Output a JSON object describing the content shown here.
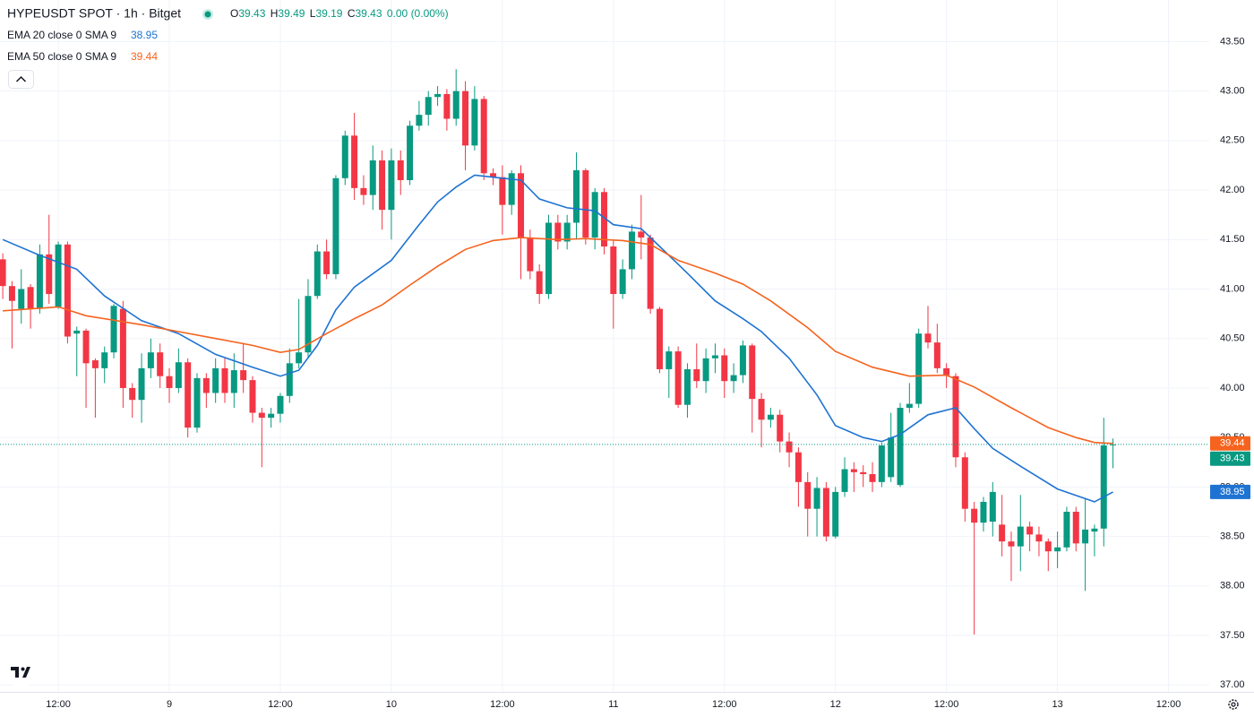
{
  "chart_data": {
    "type": "candlestick",
    "title": "HYPEUSDT SPOT · 1h · Bitget",
    "ohlc_labels": [
      "O",
      "H",
      "L",
      "C"
    ],
    "change": "0.00 (0.00%)",
    "up_color": "#089981",
    "down_color": "#f23645",
    "open": [
      41.3,
      41.03,
      40.8,
      41.02,
      40.8,
      41.35,
      40.82,
      41.45,
      40.55,
      40.58,
      40.28,
      40.2,
      40.36,
      40.8,
      40.0,
      39.88,
      40.2,
      40.36,
      40.12,
      40.0,
      40.26,
      39.6,
      40.1,
      39.95,
      40.2,
      39.95,
      40.18,
      40.08,
      39.75,
      39.7,
      39.74,
      39.92,
      40.25,
      40.36,
      40.93,
      41.38,
      41.15,
      42.12,
      42.55,
      42.02,
      41.95,
      42.3,
      41.8,
      42.3,
      42.1,
      42.65,
      42.76,
      42.94,
      42.97,
      42.72,
      43.0,
      42.45,
      42.92,
      42.17,
      42.13,
      41.85,
      42.17,
      41.52,
      41.18,
      40.95,
      41.67,
      41.48,
      41.67,
      42.2,
      41.52,
      41.98,
      41.43,
      40.95,
      41.2,
      41.58,
      41.52,
      40.8,
      40.19,
      40.37,
      39.83,
      40.19,
      40.07,
      40.3,
      40.33,
      40.07,
      40.13,
      40.43,
      39.89,
      39.68,
      39.73,
      39.46,
      39.35,
      39.05,
      38.78,
      38.99,
      38.5,
      38.95,
      39.18,
      39.15,
      39.13,
      39.05,
      39.1,
      39.02,
      39.8,
      39.84,
      40.55,
      40.46,
      40.2,
      40.12,
      39.3,
      38.78,
      38.64,
      38.65,
      38.62,
      38.45,
      38.4,
      38.6,
      38.52,
      38.45,
      38.35,
      38.39,
      38.75,
      38.43,
      38.55,
      38.58,
      39.43
    ],
    "high": [
      41.36,
      41.08,
      41.2,
      41.05,
      41.45,
      41.75,
      41.48,
      41.48,
      40.62,
      40.6,
      40.3,
      40.42,
      40.85,
      40.88,
      40.05,
      40.35,
      40.5,
      40.45,
      40.2,
      40.4,
      40.3,
      40.15,
      40.15,
      40.3,
      40.3,
      40.35,
      40.45,
      40.12,
      39.8,
      39.8,
      39.95,
      40.4,
      40.9,
      41.1,
      41.45,
      41.5,
      42.15,
      42.6,
      42.78,
      42.15,
      42.45,
      42.4,
      42.42,
      42.4,
      42.7,
      42.9,
      43.0,
      43.05,
      43.02,
      43.22,
      43.1,
      43.05,
      42.95,
      42.22,
      42.25,
      42.2,
      42.25,
      41.6,
      41.25,
      41.75,
      41.75,
      41.75,
      42.38,
      42.22,
      42.02,
      42.02,
      41.5,
      41.3,
      41.65,
      41.95,
      41.55,
      40.82,
      40.42,
      40.42,
      40.25,
      40.45,
      40.4,
      40.45,
      40.4,
      40.25,
      40.48,
      40.45,
      39.95,
      39.8,
      39.78,
      39.55,
      39.4,
      39.15,
      39.1,
      39.05,
      39.0,
      39.3,
      39.25,
      39.22,
      39.25,
      39.45,
      39.75,
      39.85,
      40.05,
      40.6,
      40.83,
      40.65,
      40.25,
      40.15,
      39.35,
      38.85,
      38.9,
      39.05,
      38.92,
      38.55,
      38.92,
      38.65,
      38.6,
      38.48,
      38.55,
      38.8,
      38.8,
      38.88,
      38.62,
      39.7,
      39.49
    ],
    "low": [
      40.9,
      40.4,
      40.65,
      40.6,
      40.75,
      40.85,
      40.8,
      40.45,
      40.12,
      39.8,
      39.7,
      40.05,
      40.3,
      39.8,
      39.7,
      39.65,
      40.1,
      40.0,
      39.85,
      39.95,
      39.5,
      39.55,
      39.8,
      39.85,
      39.85,
      39.8,
      39.95,
      39.65,
      39.2,
      39.6,
      39.65,
      39.85,
      40.2,
      40.3,
      40.9,
      41.1,
      41.1,
      42.05,
      41.9,
      41.85,
      41.8,
      41.6,
      41.5,
      41.95,
      42.05,
      42.6,
      42.65,
      42.85,
      42.6,
      42.65,
      42.2,
      42.4,
      42.1,
      42.05,
      41.55,
      41.75,
      41.1,
      41.1,
      40.85,
      40.9,
      41.4,
      41.4,
      41.5,
      41.45,
      41.4,
      41.35,
      40.6,
      40.9,
      41.1,
      41.3,
      40.75,
      40.15,
      39.9,
      39.8,
      39.7,
      40.0,
      39.95,
      40.15,
      39.9,
      39.95,
      40.05,
      39.55,
      39.4,
      39.6,
      39.35,
      39.2,
      38.8,
      38.5,
      38.5,
      38.45,
      38.48,
      38.9,
      38.95,
      39.0,
      38.95,
      39.0,
      39.05,
      39.0,
      39.75,
      39.8,
      40.4,
      40.15,
      40.0,
      39.2,
      38.65,
      37.51,
      38.55,
      38.5,
      38.3,
      38.05,
      38.15,
      38.35,
      38.3,
      38.15,
      38.18,
      38.35,
      38.35,
      37.95,
      38.3,
      38.4,
      39.19
    ],
    "close": [
      41.03,
      40.88,
      41.0,
      40.8,
      41.35,
      40.95,
      41.45,
      40.52,
      40.58,
      40.25,
      40.2,
      40.36,
      40.83,
      40.0,
      39.88,
      40.2,
      40.36,
      40.12,
      40.0,
      40.26,
      39.6,
      40.1,
      39.95,
      40.2,
      39.95,
      40.18,
      40.08,
      39.75,
      39.7,
      39.74,
      39.92,
      40.25,
      40.36,
      40.93,
      41.38,
      41.15,
      42.12,
      42.55,
      42.02,
      41.95,
      42.3,
      41.8,
      42.3,
      42.1,
      42.65,
      42.76,
      42.94,
      42.97,
      42.72,
      43.0,
      42.45,
      42.92,
      42.17,
      42.13,
      41.85,
      42.17,
      41.52,
      41.18,
      40.95,
      41.67,
      41.48,
      41.67,
      42.2,
      41.52,
      41.98,
      41.43,
      40.95,
      41.2,
      41.58,
      41.52,
      40.8,
      40.19,
      40.37,
      39.83,
      40.19,
      40.07,
      40.3,
      40.33,
      40.07,
      40.13,
      40.43,
      39.89,
      39.68,
      39.73,
      39.46,
      39.35,
      39.05,
      38.78,
      38.99,
      38.5,
      38.95,
      39.18,
      39.15,
      39.13,
      39.05,
      39.42,
      39.5,
      39.8,
      39.84,
      40.55,
      40.46,
      40.2,
      40.13,
      39.3,
      38.78,
      38.64,
      38.85,
      38.95,
      38.45,
      38.4,
      38.6,
      38.52,
      38.45,
      38.35,
      38.39,
      38.75,
      38.43,
      38.57,
      38.58,
      39.42,
      39.43
    ],
    "lines": [
      {
        "name": "EMA 20 close 0 SMA 9",
        "color": "#1e73d2",
        "x": [
          0,
          4,
          8,
          11,
          15,
          19,
          23,
          27,
          30,
          32,
          34,
          36,
          38,
          42,
          45,
          47,
          49,
          51,
          54,
          56,
          58,
          61,
          64,
          66,
          69,
          71,
          74,
          77,
          80,
          82,
          85,
          88,
          90,
          93,
          95,
          97,
          100,
          103,
          105,
          107,
          110,
          114,
          118,
          120
        ],
        "values": [
          41.5,
          41.34,
          41.2,
          40.93,
          40.68,
          40.55,
          40.34,
          40.21,
          40.12,
          40.18,
          40.43,
          40.79,
          41.02,
          41.29,
          41.65,
          41.88,
          42.03,
          42.15,
          42.12,
          42.1,
          41.91,
          41.82,
          41.79,
          41.65,
          41.61,
          41.43,
          41.16,
          40.88,
          40.7,
          40.57,
          40.3,
          39.93,
          39.62,
          39.5,
          39.46,
          39.53,
          39.73,
          39.8,
          39.59,
          39.39,
          39.21,
          38.98,
          38.85,
          38.95
        ]
      },
      {
        "name": "EMA 50 close 0 SMA 9",
        "color": "#f5631e",
        "x": [
          0,
          6,
          9,
          15,
          19,
          23,
          27,
          30,
          32,
          35,
          38,
          41,
          44,
          47,
          50,
          53,
          56,
          60,
          63,
          67,
          70,
          73,
          77,
          80,
          83,
          87,
          90,
          94,
          98,
          102,
          105,
          109,
          113,
          116,
          118,
          120
        ],
        "values": [
          40.78,
          40.82,
          40.73,
          40.64,
          40.57,
          40.5,
          40.43,
          40.36,
          40.39,
          40.55,
          40.7,
          40.84,
          41.04,
          41.23,
          41.4,
          41.49,
          41.52,
          41.5,
          41.51,
          41.49,
          41.45,
          41.29,
          41.16,
          41.05,
          40.88,
          40.61,
          40.37,
          40.21,
          40.12,
          40.13,
          40.01,
          39.8,
          39.6,
          39.5,
          39.45,
          39.44
        ]
      }
    ],
    "xlim": [
      -0.3,
      130.4
    ],
    "xticks": [
      {
        "value": 6,
        "label": "12:00"
      },
      {
        "value": 18,
        "label": "9"
      },
      {
        "value": 30,
        "label": "12:00"
      },
      {
        "value": 42,
        "label": "10"
      },
      {
        "value": 54,
        "label": "12:00"
      },
      {
        "value": 66,
        "label": "11"
      },
      {
        "value": 78,
        "label": "12:00"
      },
      {
        "value": 90,
        "label": "12"
      },
      {
        "value": 102,
        "label": "12:00"
      },
      {
        "value": 114,
        "label": "13"
      },
      {
        "value": 126,
        "label": "12:00"
      }
    ],
    "ylim": [
      36.93,
      43.92
    ],
    "yticks": [
      {
        "value": 37,
        "label": "37.00"
      },
      {
        "value": 37.5,
        "label": "37.50"
      },
      {
        "value": 38,
        "label": "38.00"
      },
      {
        "value": 38.5,
        "label": "38.50"
      },
      {
        "value": 39,
        "label": "39.00"
      },
      {
        "value": 39.5,
        "label": "39.50"
      },
      {
        "value": 40,
        "label": "40.00"
      },
      {
        "value": 40.5,
        "label": "40.50"
      },
      {
        "value": 41,
        "label": "41.00"
      },
      {
        "value": 41.5,
        "label": "41.50"
      },
      {
        "value": 42,
        "label": "42.00"
      },
      {
        "value": 42.5,
        "label": "42.50"
      },
      {
        "value": 43,
        "label": "43.00"
      },
      {
        "value": 43.5,
        "label": "43.50"
      }
    ],
    "grid": true
  }
}
